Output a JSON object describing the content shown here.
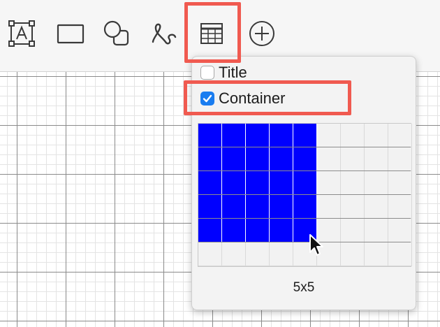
{
  "toolbar": {
    "tools": [
      {
        "name": "text",
        "icon": "text-box-icon"
      },
      {
        "name": "rectangle",
        "icon": "rectangle-icon"
      },
      {
        "name": "shapes",
        "icon": "shapes-icon"
      },
      {
        "name": "freehand",
        "icon": "freehand-icon"
      },
      {
        "name": "table",
        "icon": "table-icon",
        "active": true
      },
      {
        "name": "insert",
        "icon": "plus-circle-icon"
      }
    ]
  },
  "table_popup": {
    "title_option": {
      "label": "Title",
      "checked": false
    },
    "container_option": {
      "label": "Container",
      "checked": true
    },
    "size_grid": {
      "columns": 9,
      "rows": 6,
      "selected_columns": 5,
      "selected_rows": 5
    },
    "size_label": "5x5"
  },
  "colors": {
    "highlight": "#f05a50",
    "selected_cell": "#0000ff",
    "checkbox_checked": "#1a7df0"
  }
}
